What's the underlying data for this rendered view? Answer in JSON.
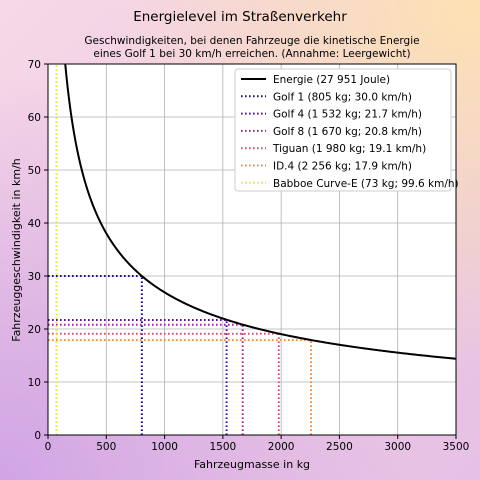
{
  "chart_data": {
    "type": "line",
    "title": "Energielevel im Straßenverkehr",
    "subtitle": [
      "Geschwindigkeiten, bei denen Fahrzeuge die kinetische Energie",
      "eines Golf 1 bei 30 km/h erreichen. (Annahme: Leergewicht)"
    ],
    "xlabel": "Fahrzeugmasse in kg",
    "ylabel": "Fahrzeuggeschwindigkeit in km/h",
    "xlim": [
      0,
      3500
    ],
    "ylim": [
      0,
      70
    ],
    "xticks": [
      0,
      500,
      1000,
      1500,
      2000,
      2500,
      3000,
      3500
    ],
    "yticks": [
      0,
      10,
      20,
      30,
      40,
      50,
      60,
      70
    ],
    "grid": true,
    "legend_position": "top-right",
    "curve": {
      "name": "Energie (27 951 Joule)",
      "color": "#000000",
      "energy_joule": 27951
    },
    "series": [
      {
        "name": "Golf 1 (805 kg; 30.0 km/h)",
        "mass": 805,
        "speed": 30.0,
        "color": "#1a0a8c"
      },
      {
        "name": "Golf 4 (1 532 kg; 21.7 km/h)",
        "mass": 1532,
        "speed": 21.7,
        "color": "#5a0a9a"
      },
      {
        "name": "Golf 8 (1 670 kg; 20.8 km/h)",
        "mass": 1670,
        "speed": 20.8,
        "color": "#a0259b"
      },
      {
        "name": "Tiguan (1 980 kg; 19.1 km/h)",
        "mass": 1980,
        "speed": 19.1,
        "color": "#d8506e"
      },
      {
        "name": "ID.4 (2 256 kg; 17.9 km/h)",
        "mass": 2256,
        "speed": 17.9,
        "color": "#f08a3a"
      },
      {
        "name": "Babboe Curve-E (73 kg; 99.6 km/h)",
        "mass": 73,
        "speed": 99.6,
        "color": "#f2e82a"
      }
    ]
  }
}
